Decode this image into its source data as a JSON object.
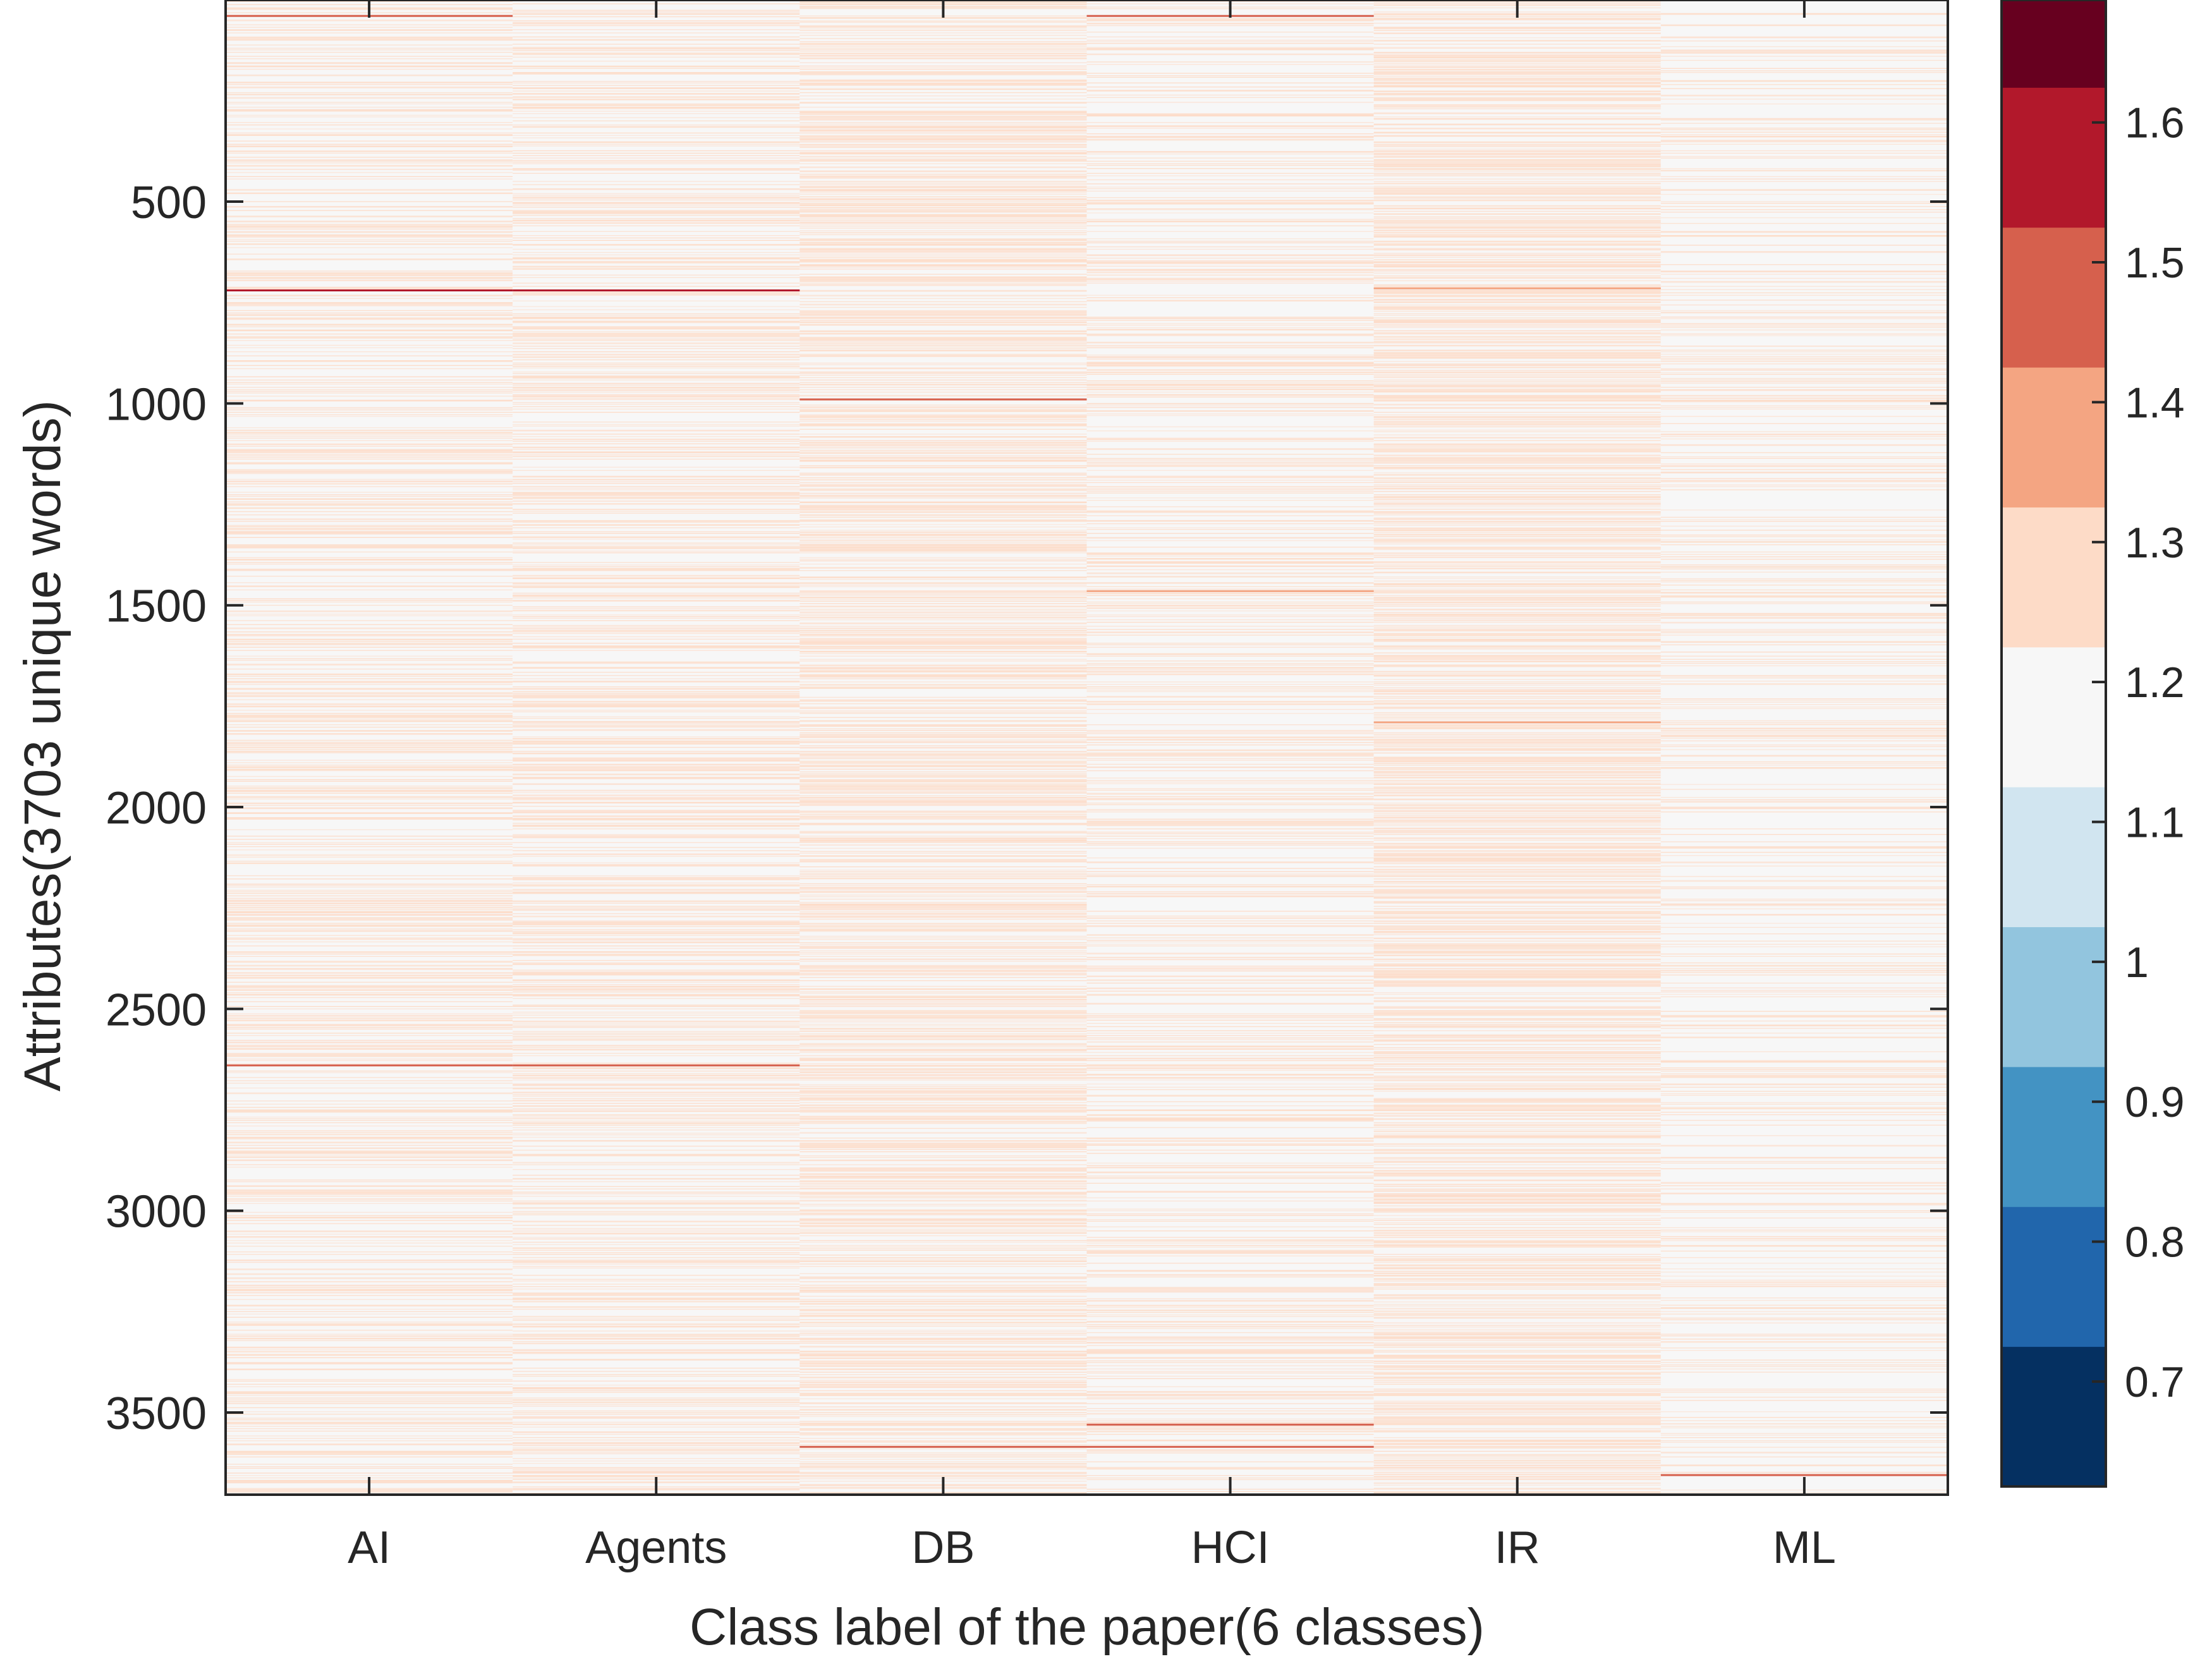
{
  "chart_data": {
    "type": "heatmap",
    "xlabel": "Class label of the paper(6 classes)",
    "ylabel": "Attributes(3703 unique words)",
    "categories": [
      "AI",
      "Agents",
      "DB",
      "HCI",
      "IR",
      "ML"
    ],
    "y_ticks": [
      500,
      1000,
      1500,
      2000,
      2500,
      3000,
      3500
    ],
    "ylim": [
      1,
      3703
    ],
    "y_reversed": true,
    "colorbar": {
      "ticks": [
        0.7,
        0.8,
        0.9,
        1,
        1.1,
        1.2,
        1.3,
        1.4,
        1.5,
        1.6
      ],
      "range": [
        0.625,
        1.6875
      ],
      "bins": [
        {
          "from": 0.625,
          "to": 0.725,
          "color": "#053061"
        },
        {
          "from": 0.725,
          "to": 0.825,
          "color": "#2166ac"
        },
        {
          "from": 0.825,
          "to": 0.925,
          "color": "#4393c3"
        },
        {
          "from": 0.925,
          "to": 1.025,
          "color": "#92c5de"
        },
        {
          "from": 1.025,
          "to": 1.125,
          "color": "#d1e5f0"
        },
        {
          "from": 1.125,
          "to": 1.225,
          "color": "#f7f7f7"
        },
        {
          "from": 1.225,
          "to": 1.325,
          "color": "#fddbc7"
        },
        {
          "from": 1.325,
          "to": 1.425,
          "color": "#f4a582"
        },
        {
          "from": 1.425,
          "to": 1.525,
          "color": "#d6604d"
        },
        {
          "from": 1.525,
          "to": 1.625,
          "color": "#b2182b"
        },
        {
          "from": 1.625,
          "to": 1.6875,
          "color": "#67001f"
        }
      ]
    },
    "value_description": "Values are mostly in the 1.125-1.225 (near-white) band with many rows in 1.225-1.325 (light salmon); a few isolated attributes reach 1.4-1.6.",
    "column_density": {
      "AI": 0.35,
      "Agents": 0.38,
      "DB": 0.5,
      "HCI": 0.3,
      "IR": 0.55,
      "ML": 0.22
    },
    "notable_rows": [
      {
        "attribute": 720,
        "columns": [
          "AI",
          "Agents"
        ],
        "value": 1.55
      },
      {
        "attribute": 2640,
        "columns": [
          "AI",
          "Agents"
        ],
        "value": 1.5
      },
      {
        "attribute": 990,
        "columns": [
          "DB"
        ],
        "value": 1.45
      },
      {
        "attribute": 3585,
        "columns": [
          "DB",
          "HCI"
        ],
        "value": 1.45
      },
      {
        "attribute": 1465,
        "columns": [
          "HCI"
        ],
        "value": 1.4
      },
      {
        "attribute": 3530,
        "columns": [
          "HCI"
        ],
        "value": 1.45
      },
      {
        "attribute": 715,
        "columns": [
          "IR"
        ],
        "value": 1.4
      },
      {
        "attribute": 3655,
        "columns": [
          "ML"
        ],
        "value": 1.45
      },
      {
        "attribute": 40,
        "columns": [
          "AI",
          "HCI"
        ],
        "value": 1.5
      },
      {
        "attribute": 1790,
        "columns": [
          "IR"
        ],
        "value": 1.4
      }
    ]
  }
}
